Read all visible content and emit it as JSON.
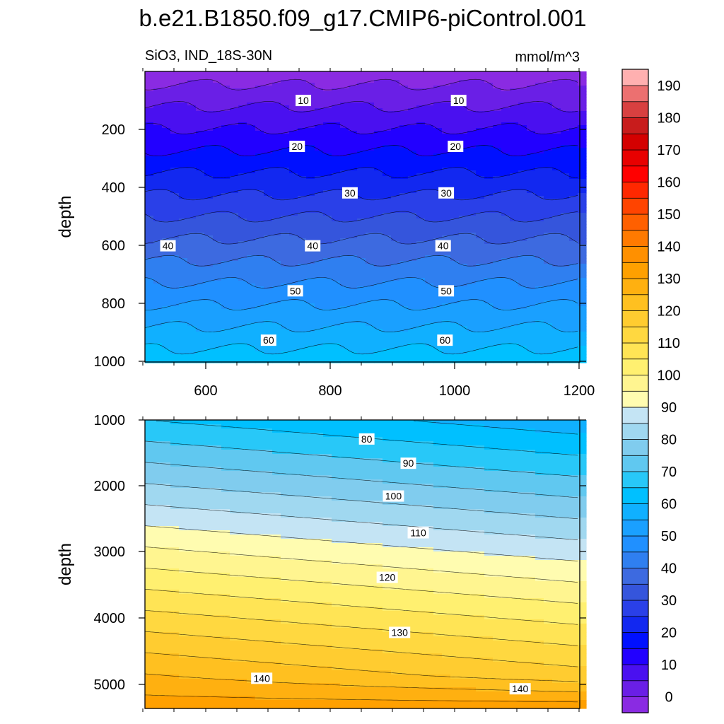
{
  "title": "b.e21.B1850.f09_g17.CMIP6-piControl.001",
  "chart_data": {
    "type": "contour",
    "variable_label": "SiO3, IND_18S-30N",
    "units": "mmol/m^3",
    "colorbar": {
      "levels": [
        0,
        5,
        10,
        15,
        20,
        25,
        30,
        35,
        40,
        45,
        50,
        55,
        60,
        65,
        70,
        75,
        80,
        85,
        90,
        95,
        100,
        105,
        110,
        115,
        120,
        125,
        130,
        135,
        140,
        145,
        150,
        155,
        160,
        165,
        170,
        175,
        180,
        185,
        190,
        195
      ],
      "tick_labels": [
        "0",
        "10",
        "20",
        "30",
        "40",
        "50",
        "60",
        "70",
        "80",
        "90",
        "100",
        "110",
        "120",
        "130",
        "140",
        "150",
        "160",
        "170",
        "180",
        "190"
      ],
      "colors": [
        "#8a2be2",
        "#6a1fe6",
        "#4a10f0",
        "#2200ff",
        "#0010ff",
        "#1228f0",
        "#2a40e8",
        "#3555dc",
        "#3d6ae0",
        "#2f7ff0",
        "#2090ff",
        "#1aa0ff",
        "#10b0ff",
        "#00c0ff",
        "#28c8f8",
        "#60c8f0",
        "#80ccee",
        "#a0d8f0",
        "#c4e4f4",
        "#fffcb0",
        "#fff590",
        "#fff070",
        "#ffe455",
        "#ffd840",
        "#ffcc30",
        "#ffc020",
        "#ffb010",
        "#ffa000",
        "#ff9000",
        "#ff7a00",
        "#ff6000",
        "#ff4400",
        "#ff2800",
        "#ff0000",
        "#e80000",
        "#d40000",
        "#c81c1c",
        "#d84040",
        "#ec7070",
        "#ffb0b0"
      ]
    },
    "panels": [
      {
        "name": "upper",
        "x_range": [
          500,
          1200
        ],
        "y_range": [
          0,
          1000
        ],
        "y_inverted": true,
        "xticks": [
          "600",
          "800",
          "1000",
          "1200"
        ],
        "yticks": [
          "200",
          "400",
          "600",
          "800",
          "1000"
        ],
        "ylabel": "depth",
        "contour_labels": [
          {
            "text": "10",
            "x": 755,
            "y": 100
          },
          {
            "text": "10",
            "x": 1005,
            "y": 100
          },
          {
            "text": "20",
            "x": 745,
            "y": 258
          },
          {
            "text": "20",
            "x": 1000,
            "y": 258
          },
          {
            "text": "30",
            "x": 830,
            "y": 418
          },
          {
            "text": "30",
            "x": 985,
            "y": 418
          },
          {
            "text": "40",
            "x": 537,
            "y": 600
          },
          {
            "text": "40",
            "x": 770,
            "y": 600
          },
          {
            "text": "40",
            "x": 980,
            "y": 600
          },
          {
            "text": "50",
            "x": 742,
            "y": 755
          },
          {
            "text": "50",
            "x": 985,
            "y": 755
          },
          {
            "text": "60",
            "x": 699,
            "y": 925
          },
          {
            "text": "60",
            "x": 983,
            "y": 925
          }
        ]
      },
      {
        "name": "lower",
        "x_range": [
          500,
          1200
        ],
        "y_range": [
          1000,
          5400
        ],
        "y_inverted": true,
        "xticks": [],
        "yticks": [
          "1000",
          "2000",
          "3000",
          "4000",
          "5000"
        ],
        "ylabel": "depth",
        "contour_labels": [
          {
            "text": "80",
            "x": 857,
            "y": 1290
          },
          {
            "text": "90",
            "x": 924,
            "y": 1660
          },
          {
            "text": "100",
            "x": 900,
            "y": 2160
          },
          {
            "text": "110",
            "x": 940,
            "y": 2720
          },
          {
            "text": "120",
            "x": 890,
            "y": 3400
          },
          {
            "text": "130",
            "x": 910,
            "y": 4240
          },
          {
            "text": "140",
            "x": 688,
            "y": 4940
          },
          {
            "text": "140",
            "x": 1104,
            "y": 5100
          }
        ]
      }
    ]
  }
}
